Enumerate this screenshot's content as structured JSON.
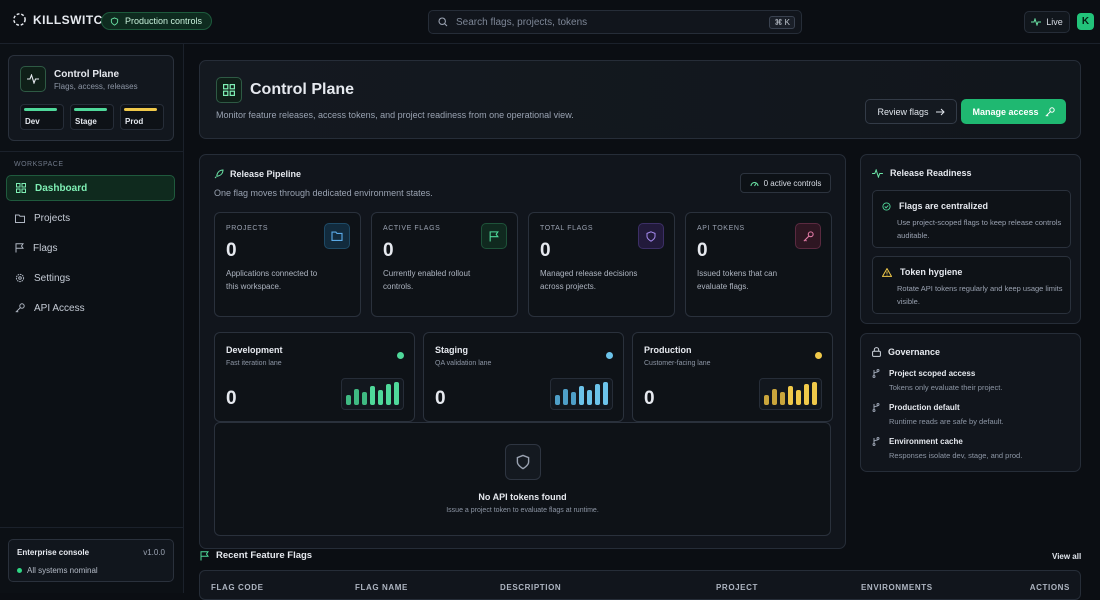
{
  "app": {
    "name": "KILLSWITCH",
    "env_pill": "Production controls"
  },
  "search": {
    "placeholder": "Search flags, projects, tokens",
    "shortcut": "⌘ K"
  },
  "status": {
    "live_label": "Live",
    "avatar_initial": "K"
  },
  "sidebar": {
    "card": {
      "title": "Control Plane",
      "subtitle": "Flags, access, releases",
      "envs": [
        {
          "label": "Dev",
          "color": "#4fd89a"
        },
        {
          "label": "Stage",
          "color": "#4fd89a"
        },
        {
          "label": "Prod",
          "color": "#f0c94a"
        }
      ]
    },
    "section_label": "WORKSPACE",
    "items": [
      {
        "label": "Dashboard",
        "icon": "dashboard-icon"
      },
      {
        "label": "Projects",
        "icon": "folder-icon"
      },
      {
        "label": "Flags",
        "icon": "flag-icon"
      },
      {
        "label": "Settings",
        "icon": "gear-icon"
      },
      {
        "label": "API Access",
        "icon": "key-icon"
      }
    ],
    "footer": {
      "title": "Enterprise console",
      "version": "v1.0.0",
      "status": "All systems nominal"
    }
  },
  "hero": {
    "title": "Control Plane",
    "subtitle": "Monitor feature releases, access tokens, and project readiness from one operational view.",
    "review_button": "Review flags",
    "manage_button": "Manage access"
  },
  "pipeline": {
    "title": "Release Pipeline",
    "subtitle": "One flag moves through dedicated environment states.",
    "badge": "0 active controls",
    "stats": [
      {
        "label": "PROJECTS",
        "value": "0",
        "desc": "Applications connected to this workspace.",
        "icon": "folder-icon",
        "color": "#5aa9e6"
      },
      {
        "label": "ACTIVE FLAGS",
        "value": "0",
        "desc": "Currently enabled rollout controls.",
        "icon": "flag-icon",
        "color": "#4fd89a"
      },
      {
        "label": "TOTAL FLAGS",
        "value": "0",
        "desc": "Managed release decisions across projects.",
        "icon": "shield-icon",
        "color": "#a68bf0"
      },
      {
        "label": "API TOKENS",
        "value": "0",
        "desc": "Issued tokens that can evaluate flags.",
        "icon": "key-icon",
        "color": "#e07aa5"
      }
    ],
    "lanes": [
      {
        "title": "Development",
        "subtitle": "Fast iteration lane",
        "value": "0",
        "color": "#4fd89a"
      },
      {
        "title": "Staging",
        "subtitle": "QA validation lane",
        "value": "0",
        "color": "#6cc3ea"
      },
      {
        "title": "Production",
        "subtitle": "Customer-facing lane",
        "value": "0",
        "color": "#f0c94a"
      }
    ],
    "empty": {
      "title": "No API tokens found",
      "subtitle": "Issue a project token to evaluate flags at runtime."
    }
  },
  "readiness": {
    "title": "Release Readiness",
    "items": [
      {
        "title": "Flags are centralized",
        "desc": "Use project-scoped flags to keep release controls auditable.",
        "icon": "check-circle-icon"
      },
      {
        "title": "Token hygiene",
        "desc": "Rotate API tokens regularly and keep usage limits visible.",
        "icon": "warning-icon"
      }
    ]
  },
  "governance": {
    "title": "Governance",
    "items": [
      {
        "title": "Project scoped access",
        "desc": "Tokens only evaluate their project."
      },
      {
        "title": "Production default",
        "desc": "Runtime reads are safe by default."
      },
      {
        "title": "Environment cache",
        "desc": "Responses isolate dev, stage, and prod."
      }
    ]
  },
  "recent": {
    "title": "Recent Feature Flags",
    "view_all": "View all",
    "columns": [
      "FLAG CODE",
      "FLAG NAME",
      "DESCRIPTION",
      "PROJECT",
      "ENVIRONMENTS",
      "ACTIONS"
    ]
  }
}
